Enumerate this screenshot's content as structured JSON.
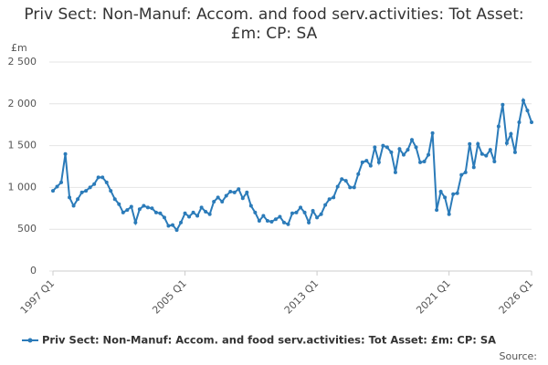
{
  "chart_data": {
    "type": "line",
    "title": "Priv Sect: Non-Manuf: Accom. and food serv.activities: Tot Asset: £m: CP: SA",
    "y_label": "£m",
    "source": "Source:",
    "categories": [
      "1997 Q1",
      null,
      null,
      null,
      null,
      null,
      null,
      null,
      null,
      null,
      null,
      null,
      null,
      null,
      null,
      null,
      null,
      null,
      null,
      null,
      null,
      null,
      null,
      null,
      null,
      null,
      null,
      null,
      null,
      null,
      null,
      null,
      "2005 Q1",
      null,
      null,
      null,
      null,
      null,
      null,
      null,
      null,
      null,
      null,
      null,
      null,
      null,
      null,
      null,
      null,
      null,
      null,
      null,
      null,
      null,
      null,
      null,
      null,
      null,
      null,
      null,
      null,
      null,
      null,
      null,
      "2013 Q1",
      null,
      null,
      null,
      null,
      null,
      null,
      null,
      null,
      null,
      null,
      null,
      null,
      null,
      null,
      null,
      null,
      null,
      null,
      null,
      null,
      null,
      null,
      null,
      null,
      null,
      null,
      null,
      null,
      null,
      null,
      null,
      "2021 Q1",
      null,
      null,
      null,
      null,
      null,
      null,
      null,
      null,
      null,
      null,
      null,
      null,
      null,
      null,
      null,
      null,
      null,
      null,
      null,
      "2026 Q1"
    ],
    "series": [
      {
        "name": "Priv Sect: Non-Manuf: Accom. and food serv.activities: Tot Asset: £m: CP: SA",
        "color": "#2b7bb9",
        "values": [
          960,
          1010,
          1060,
          1400,
          880,
          780,
          860,
          940,
          960,
          1000,
          1040,
          1120,
          1120,
          1060,
          960,
          860,
          800,
          700,
          730,
          770,
          580,
          740,
          780,
          760,
          750,
          700,
          690,
          640,
          540,
          550,
          490,
          580,
          690,
          650,
          700,
          660,
          760,
          710,
          680,
          830,
          880,
          830,
          900,
          950,
          940,
          980,
          870,
          940,
          780,
          700,
          600,
          660,
          600,
          590,
          620,
          650,
          580,
          560,
          690,
          700,
          760,
          700,
          580,
          720,
          640,
          680,
          790,
          860,
          880,
          1010,
          1100,
          1080,
          1000,
          1000,
          1160,
          1300,
          1320,
          1260,
          1480,
          1300,
          1500,
          1480,
          1420,
          1180,
          1460,
          1390,
          1450,
          1570,
          1480,
          1300,
          1310,
          1390,
          1650,
          730,
          950,
          880,
          680,
          920,
          930,
          1150,
          1180,
          1520,
          1240,
          1520,
          1400,
          1380,
          1450,
          1310,
          1730,
          1990,
          1530,
          1640,
          1420,
          1780,
          2040,
          1920,
          1780
        ]
      }
    ],
    "ylim": [
      0,
      2500
    ],
    "yticks": [
      0,
      500,
      {
        "value": 1000,
        "label": "1 000"
      },
      {
        "value": 1500,
        "label": "1 500"
      },
      {
        "value": 2000,
        "label": "2 000"
      },
      {
        "value": 2500,
        "label": "2 500"
      }
    ],
    "grid": true
  }
}
